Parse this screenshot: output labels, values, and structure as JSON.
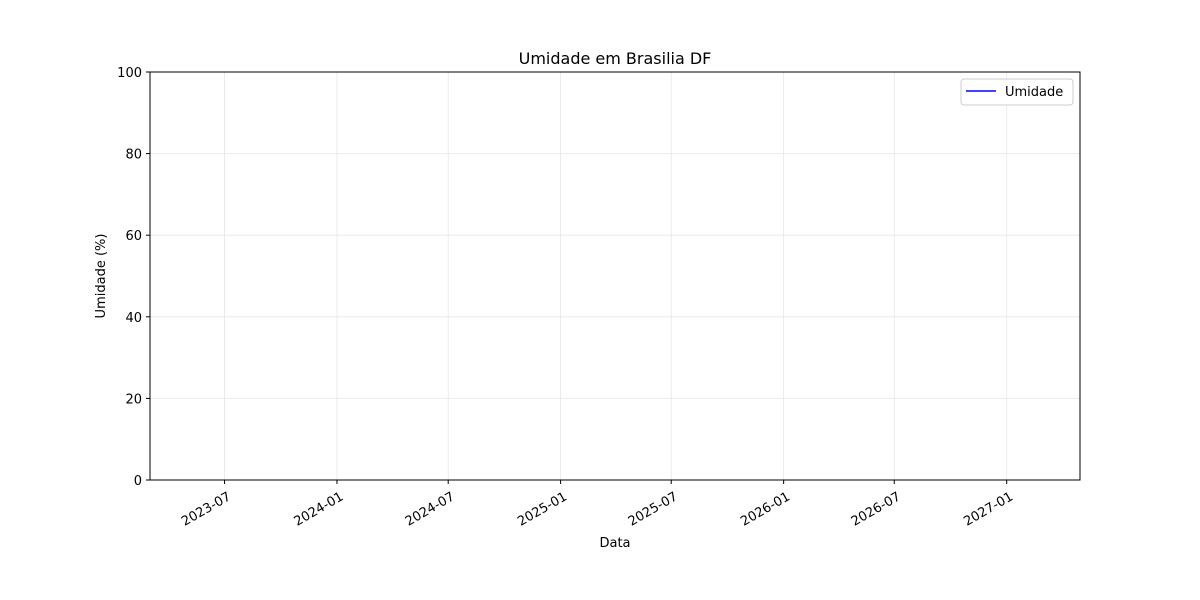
{
  "chart_data": {
    "type": "line",
    "title": "Umidade em Brasilia DF",
    "xlabel": "Data",
    "ylabel": "Umidade (%)",
    "x_type": "date",
    "xlim": [
      "2023-03-01",
      "2027-05-01"
    ],
    "ylim": [
      0,
      100
    ],
    "x_ticks": [
      "2023-07",
      "2024-01",
      "2024-07",
      "2025-01",
      "2025-07",
      "2026-01",
      "2026-07",
      "2027-01"
    ],
    "y_ticks": [
      0,
      20,
      40,
      60,
      80,
      100
    ],
    "grid": true,
    "legend_position": "top-right",
    "series": [
      {
        "name": "Umidade",
        "color": "#0000ff",
        "x": [],
        "y": []
      }
    ]
  }
}
